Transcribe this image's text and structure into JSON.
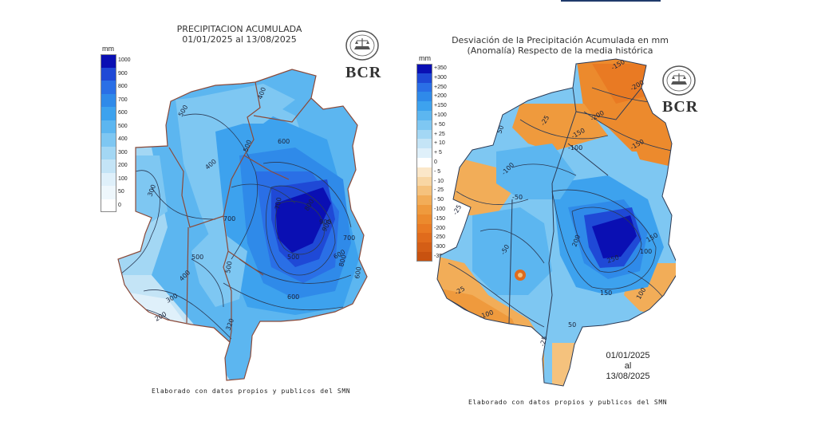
{
  "left": {
    "title_line1": "PRECIPITACION ACUMULADA",
    "title_line2": "01/01/2025 al 13/08/2025",
    "unit": "mm",
    "legend": [
      {
        "label": "1000",
        "color": "#0a0fb3"
      },
      {
        "label": "900",
        "color": "#1f49d6"
      },
      {
        "label": "800",
        "color": "#2a6fe6"
      },
      {
        "label": "700",
        "color": "#2f8ae9"
      },
      {
        "label": "600",
        "color": "#3da2ee"
      },
      {
        "label": "500",
        "color": "#5cb6f0"
      },
      {
        "label": "400",
        "color": "#7ec7f2"
      },
      {
        "label": "300",
        "color": "#a3d7f4"
      },
      {
        "label": "200",
        "color": "#c4e4f6"
      },
      {
        "label": "100",
        "color": "#dff0fa"
      },
      {
        "label": "50",
        "color": "#eef7fc"
      },
      {
        "label": "0",
        "color": "#ffffff"
      }
    ],
    "contour_labels": [
      "400",
      "500",
      "500",
      "600",
      "400",
      "300",
      "700",
      "800",
      "900",
      "700",
      "600",
      "800",
      "600",
      "900",
      "700",
      "500",
      "600",
      "500",
      "400",
      "300",
      "200",
      "320",
      "500"
    ],
    "logo_text": "BCR",
    "credit": "Elaborado con datos propios y publicos del SMN"
  },
  "right": {
    "title_line1": "Desviación de la Precipitación Acumulada en mm",
    "title_line2": "(Anomalía) Respecto de la media histórica",
    "unit": "mm",
    "legend": [
      {
        "label": "+350",
        "color": "#0a0fb3"
      },
      {
        "label": "+300",
        "color": "#1f49d6"
      },
      {
        "label": "+250",
        "color": "#2a6fe6"
      },
      {
        "label": "+200",
        "color": "#2f8ae9"
      },
      {
        "label": "+150",
        "color": "#3da2ee"
      },
      {
        "label": "+100",
        "color": "#5cb6f0"
      },
      {
        "label": "+ 50",
        "color": "#7ec7f2"
      },
      {
        "label": "+ 25",
        "color": "#a3d7f4"
      },
      {
        "label": "+ 10",
        "color": "#c4e4f6"
      },
      {
        "label": "+ 5",
        "color": "#dff0fa"
      },
      {
        "label": "0",
        "color": "#ffffff"
      },
      {
        "label": "- 5",
        "color": "#fbe7c9"
      },
      {
        "label": "- 10",
        "color": "#f8d6a4"
      },
      {
        "label": "- 25",
        "color": "#f5c27d"
      },
      {
        "label": "- 50",
        "color": "#f2ad58"
      },
      {
        "label": "-100",
        "color": "#ef9a3d"
      },
      {
        "label": "-150",
        "color": "#ec8a2d"
      },
      {
        "label": "-200",
        "color": "#e97a23"
      },
      {
        "label": "-250",
        "color": "#e06b1c"
      },
      {
        "label": "-300",
        "color": "#d45e16"
      },
      {
        "label": "-350",
        "color": "#c85210"
      }
    ],
    "contour_labels": [
      "-150",
      "-200",
      "-200",
      "-150",
      "-100",
      "-150",
      "50",
      "-25",
      "-100",
      "-50",
      "-25",
      "200",
      "250",
      "150",
      "100",
      "150",
      "-50",
      "-25",
      "-100",
      "-25",
      "50",
      "100"
    ],
    "logo_text": "BCR",
    "date_line1": "01/01/2025",
    "date_line2": "al",
    "date_line3": "13/08/2025",
    "credit": "Elaborado con datos propios y publicos del SMN"
  },
  "colors": {
    "boundary": "#8a4a3a",
    "contour": "#2b3a55"
  },
  "icons": [
    "bcr-seal-icon"
  ]
}
